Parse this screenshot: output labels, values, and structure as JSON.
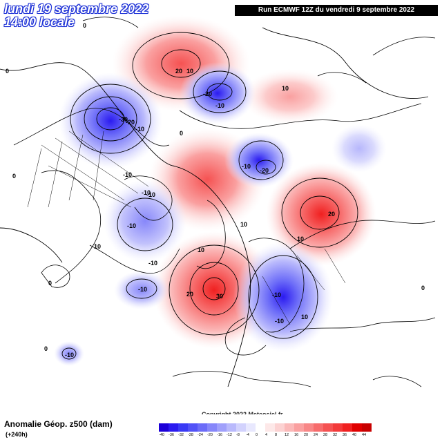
{
  "header": {
    "date_line": "lundi 19 septembre 2022",
    "time_line": "14:00 locale",
    "run_info": "Run ECMWF 12Z du vendredi 9 septembre 2022"
  },
  "footer": {
    "variable": "Anomalie Géop. z500 (dam)",
    "lead": "(+240h)",
    "copyright": "Copyright 2022 Meteociel.fr"
  },
  "legend": {
    "labels": [
      "-40",
      "-36",
      "-32",
      "-28",
      "-24",
      "-20",
      "-16",
      "-12",
      "-8",
      "-4",
      "0",
      "4",
      "8",
      "12",
      "16",
      "20",
      "24",
      "28",
      "32",
      "36",
      "40",
      "44"
    ],
    "colors": [
      "#1c00d8",
      "#2b1bf0",
      "#3a3af5",
      "#5252f7",
      "#6c6cf8",
      "#8787fa",
      "#a0a0fb",
      "#b9b9fc",
      "#d2d2fd",
      "#e8e8fe",
      "#ffffff",
      "#fde8e8",
      "#fcd2d2",
      "#fbb9b9",
      "#faa0a0",
      "#f88787",
      "#f76c6c",
      "#f55252",
      "#f33a3a",
      "#f02020",
      "#e00000",
      "#c80000"
    ]
  },
  "map": {
    "anomalies": [
      {
        "sign": "negative",
        "peak_label": "-30",
        "contour_labels": [
          "-20",
          "-10"
        ]
      },
      {
        "sign": "positive",
        "peak_label": "20",
        "contour_labels": [
          "10"
        ]
      },
      {
        "sign": "negative",
        "peak_label": "-20",
        "contour_labels": [
          "-10"
        ]
      },
      {
        "sign": "negative",
        "peak_label": "-20",
        "contour_labels": [
          "-10"
        ]
      },
      {
        "sign": "positive",
        "peak_label": "20",
        "contour_labels": [
          "10"
        ]
      },
      {
        "sign": "positive",
        "peak_label": "30",
        "contour_labels": [
          "20",
          "10"
        ]
      },
      {
        "sign": "negative",
        "peak_label": "-10",
        "contour_labels": [
          "-10"
        ]
      },
      {
        "sign": "negative",
        "peak_label": "-10",
        "contour_labels": []
      },
      {
        "sign": "negative",
        "peak_label": "-10",
        "contour_labels": []
      },
      {
        "sign": "negative",
        "peak_label": "-10",
        "contour_labels": []
      }
    ],
    "zero_labels": [
      "0",
      "0",
      "0",
      "0",
      "0",
      "0",
      "0"
    ],
    "other_labels": [
      "10",
      "10",
      "10",
      "10",
      "-10",
      "-10",
      "-10",
      "-10"
    ]
  }
}
